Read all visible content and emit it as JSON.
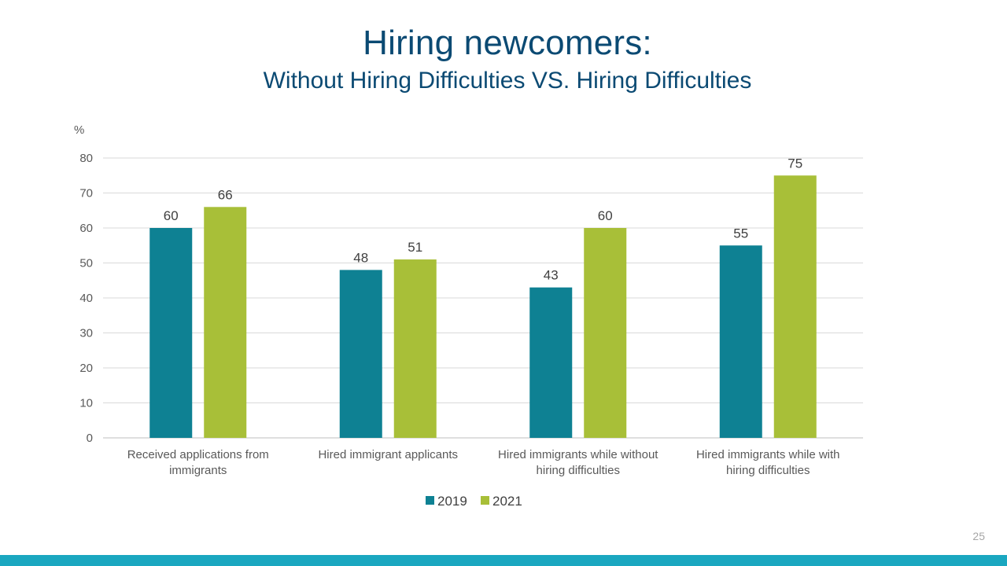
{
  "slide": {
    "title": "Hiring newcomers:",
    "subtitle": "Without Hiring Difficulties VS. Hiring Difficulties",
    "page_number": "25"
  },
  "colors": {
    "title": "#0b4a73",
    "series_2019": "#0e8193",
    "series_2021": "#a8bf38",
    "footer_bar": "#1aa7c0"
  },
  "chart_data": {
    "type": "bar",
    "ylabel": "%",
    "ylim": [
      0,
      80
    ],
    "yticks": [
      0,
      10,
      20,
      30,
      40,
      50,
      60,
      70,
      80
    ],
    "grid": true,
    "legend_position": "bottom",
    "categories": [
      [
        "Received applications from",
        "immigrants"
      ],
      [
        "Hired immigrant applicants"
      ],
      [
        "Hired immigrants while without",
        "hiring difficulties"
      ],
      [
        "Hired immigrants while with",
        "hiring difficulties"
      ]
    ],
    "series": [
      {
        "name": "2019",
        "color": "#0e8193",
        "values": [
          60,
          48,
          43,
          55
        ]
      },
      {
        "name": "2021",
        "color": "#a8bf38",
        "values": [
          66,
          51,
          60,
          75
        ]
      }
    ]
  }
}
